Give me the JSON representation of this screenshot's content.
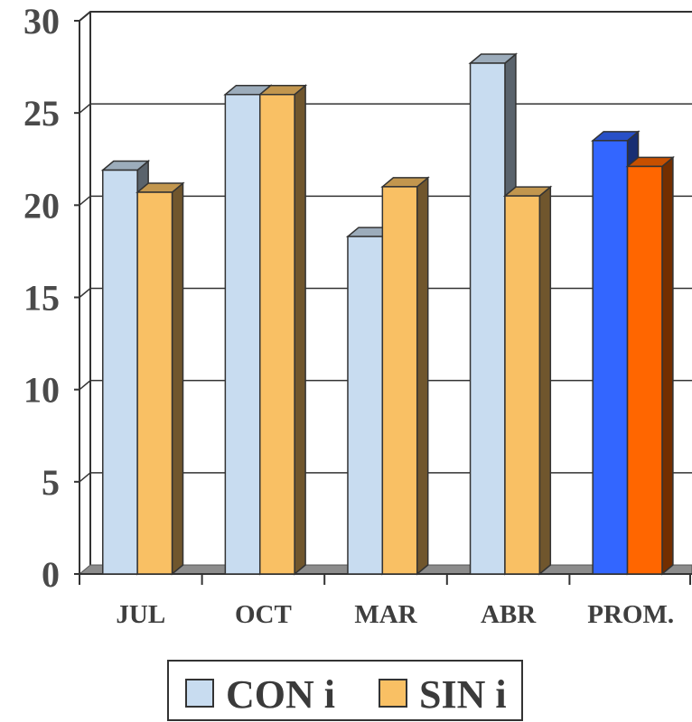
{
  "chart_data": {
    "type": "bar",
    "categories": [
      "JUL",
      "OCT",
      "MAR",
      "ABR",
      "PROM."
    ],
    "series": [
      {
        "name": "CON i",
        "values": [
          21.9,
          26.0,
          18.3,
          27.7,
          23.5
        ],
        "color": "#c8dcf0",
        "highlight_color": "#3366ff"
      },
      {
        "name": "SIN i",
        "values": [
          20.7,
          26.0,
          21.0,
          20.5,
          22.1
        ],
        "color": "#f9c064",
        "highlight_color": "#ff6600"
      }
    ],
    "highlighted_category": "PROM.",
    "ylim": [
      0,
      30
    ],
    "yticks": [
      "0",
      "5",
      "10",
      "15",
      "20",
      "25",
      "30"
    ],
    "grid": true,
    "legend_position": "bottom",
    "style": "3d-clustered-column"
  }
}
